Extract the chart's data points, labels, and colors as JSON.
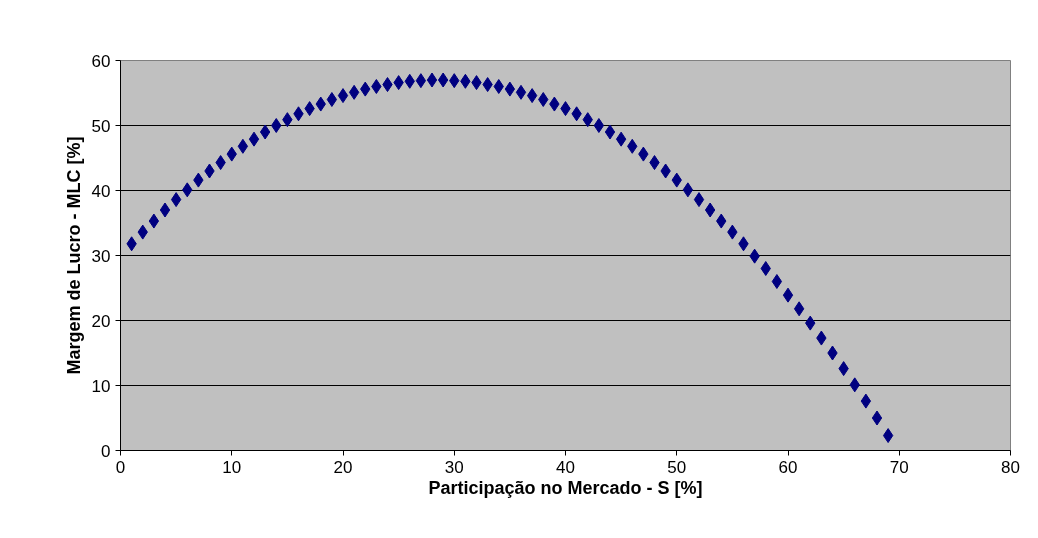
{
  "chart_data": {
    "type": "scatter",
    "xlabel": "Participação no Mercado - S [%]",
    "ylabel": "Margem de Lucro - MLC [%]",
    "x": [
      1,
      2,
      3,
      4,
      5,
      6,
      7,
      8,
      9,
      10,
      11,
      12,
      13,
      14,
      15,
      16,
      17,
      18,
      19,
      20,
      21,
      22,
      23,
      24,
      25,
      26,
      27,
      28,
      29,
      30,
      31,
      32,
      33,
      34,
      35,
      36,
      37,
      38,
      39,
      40,
      41,
      42,
      43,
      44,
      45,
      46,
      47,
      48,
      49,
      50,
      51,
      52,
      53,
      54,
      55,
      56,
      57,
      58,
      59,
      60,
      61,
      62,
      63,
      64,
      65,
      66,
      67,
      68,
      69
    ],
    "series": [
      {
        "color": "#000080",
        "values": [
          31.8,
          33.6,
          35.3,
          37.0,
          38.6,
          40.1,
          41.6,
          43.0,
          44.3,
          45.6,
          46.8,
          47.9,
          49.0,
          50.0,
          50.9,
          51.8,
          52.6,
          53.3,
          54.0,
          54.6,
          55.1,
          55.6,
          56.0,
          56.3,
          56.6,
          56.8,
          56.9,
          57.0,
          57.0,
          56.9,
          56.8,
          56.6,
          56.3,
          56.0,
          55.6,
          55.1,
          54.6,
          54.0,
          53.3,
          52.6,
          51.8,
          50.9,
          50.0,
          49.0,
          47.9,
          46.8,
          45.6,
          44.3,
          43.0,
          41.6,
          40.1,
          38.6,
          37.0,
          35.3,
          33.6,
          31.8,
          29.9,
          28.0,
          26.0,
          23.9,
          21.8,
          19.6,
          17.3,
          15.0,
          12.6,
          10.1,
          7.6,
          5.0,
          2.3
        ]
      }
    ],
    "xlim": [
      0,
      80
    ],
    "ylim": [
      0,
      60
    ],
    "xticks": [
      0,
      10,
      20,
      30,
      40,
      50,
      60,
      70,
      80
    ],
    "yticks": [
      0,
      10,
      20,
      30,
      40,
      50,
      60
    ],
    "grid": "y",
    "marker": "diamond"
  }
}
